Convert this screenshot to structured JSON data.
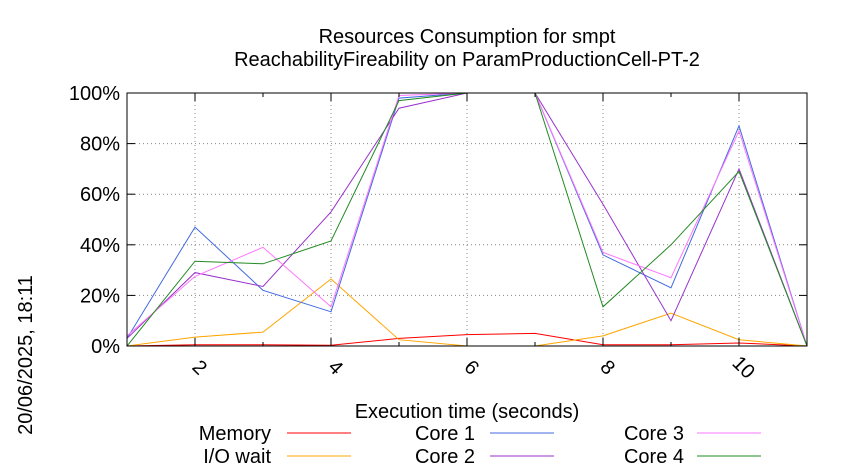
{
  "side_label": "20/06/2025, 18:11",
  "chart_data": {
    "type": "line",
    "title": "Resources Consumption for smpt",
    "subtitle": "ReachabilityFireability on ParamProductionCell-PT-2",
    "xlabel": "Execution time (seconds)",
    "ylabel": "",
    "xlim": [
      1,
      11
    ],
    "ylim": [
      0,
      100
    ],
    "x_ticks": [
      2,
      4,
      6,
      8,
      10
    ],
    "y_ticks": [
      0,
      20,
      40,
      60,
      80,
      100
    ],
    "y_tick_labels": [
      "0%",
      "20%",
      "40%",
      "60%",
      "80%",
      "100%"
    ],
    "grid": true,
    "legend_position": "bottom",
    "x": [
      1,
      2,
      3,
      4,
      5,
      6,
      7,
      8,
      9,
      10,
      11
    ],
    "series": [
      {
        "name": "Memory",
        "color": "#ff0000",
        "values": [
          0,
          0.5,
          0.5,
          0.3,
          3,
          4.5,
          5,
          0.5,
          0.5,
          1.2,
          0
        ]
      },
      {
        "name": "I/O wait",
        "color": "#ffa500",
        "values": [
          0,
          3.5,
          5.5,
          26.5,
          2.5,
          0,
          0,
          4,
          13,
          2.5,
          0
        ]
      },
      {
        "name": "Core 1",
        "color": "#4169e1",
        "values": [
          3,
          47,
          22,
          13.5,
          98,
          100,
          100,
          36,
          23,
          87,
          0
        ]
      },
      {
        "name": "Core 2",
        "color": "#9932cc",
        "values": [
          3,
          29,
          23.5,
          53,
          94,
          100,
          100,
          56,
          10,
          70,
          0
        ]
      },
      {
        "name": "Core 3",
        "color": "#ff77ff",
        "values": [
          4,
          27.5,
          39,
          15.5,
          99,
          100,
          100,
          37,
          27,
          85,
          0
        ]
      },
      {
        "name": "Core 4",
        "color": "#228b22",
        "values": [
          0,
          33.5,
          32.5,
          41.5,
          97,
          100,
          100,
          15.5,
          40,
          69,
          0
        ]
      }
    ]
  }
}
